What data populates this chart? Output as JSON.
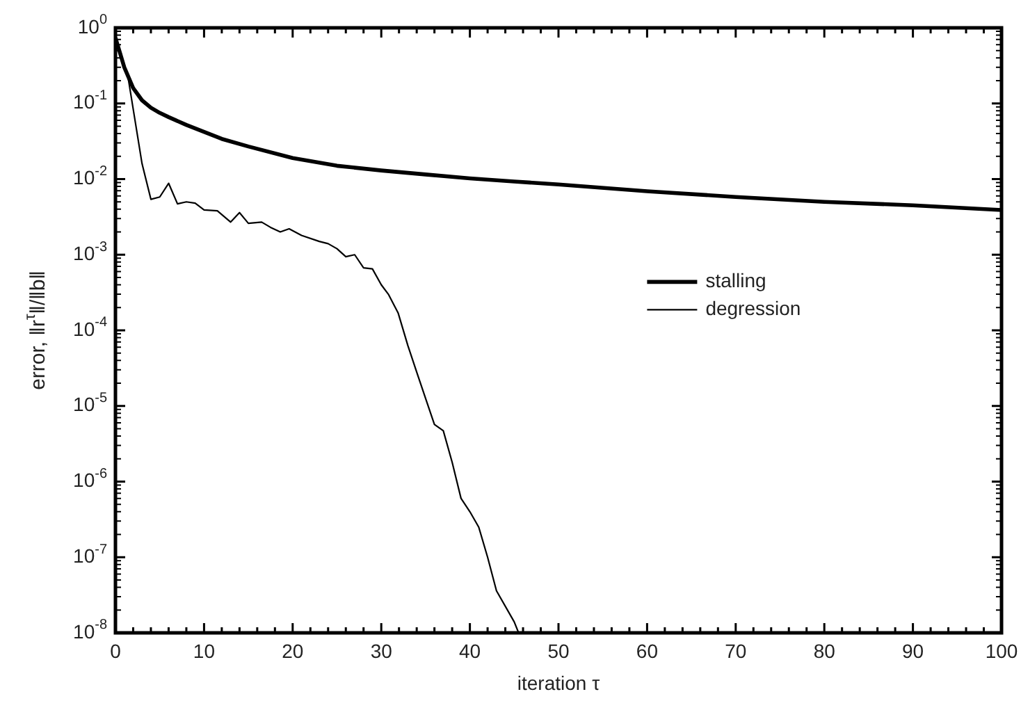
{
  "chart_data": {
    "type": "line",
    "xlabel": "iteration τ",
    "ylabel": "error, ‖r$^{τ}$‖/‖b‖",
    "log": "y",
    "legend": "right",
    "grid": false,
    "marker": "none",
    "line_style": "solid",
    "xlim": [
      0,
      100
    ],
    "xticks": [
      0,
      {
        "value": 2,
        "label": null
      },
      {
        "value": 4,
        "label": null
      },
      {
        "value": 6,
        "label": null
      },
      {
        "value": 8,
        "label": null
      },
      10,
      {
        "value": 12,
        "label": null
      },
      {
        "value": 14,
        "label": null
      },
      {
        "value": 16,
        "label": null
      },
      {
        "value": 18,
        "label": null
      },
      20,
      {
        "value": 22,
        "label": null
      },
      {
        "value": 24,
        "label": null
      },
      {
        "value": 26,
        "label": null
      },
      {
        "value": 28,
        "label": null
      },
      30,
      {
        "value": 32,
        "label": null
      },
      {
        "value": 34,
        "label": null
      },
      {
        "value": 36,
        "label": null
      },
      {
        "value": 38,
        "label": null
      },
      40,
      {
        "value": 42,
        "label": null
      },
      {
        "value": 44,
        "label": null
      },
      {
        "value": 46,
        "label": null
      },
      {
        "value": 48,
        "label": null
      },
      50,
      {
        "value": 52,
        "label": null
      },
      {
        "value": 54,
        "label": null
      },
      {
        "value": 56,
        "label": null
      },
      {
        "value": 58,
        "label": null
      },
      60,
      {
        "value": 62,
        "label": null
      },
      {
        "value": 64,
        "label": null
      },
      {
        "value": 66,
        "label": null
      },
      {
        "value": 68,
        "label": null
      },
      70,
      {
        "value": 72,
        "label": null
      },
      {
        "value": 74,
        "label": null
      },
      {
        "value": 76,
        "label": null
      },
      {
        "value": 78,
        "label": null
      },
      80,
      {
        "value": 82,
        "label": null
      },
      {
        "value": 84,
        "label": null
      },
      {
        "value": 86,
        "label": null
      },
      {
        "value": 88,
        "label": null
      },
      90,
      {
        "value": 92,
        "label": null
      },
      {
        "value": 94,
        "label": null
      },
      {
        "value": 96,
        "label": null
      },
      {
        "value": 98,
        "label": null
      },
      100
    ],
    "ylim": [
      1e-08,
      1
    ],
    "yticks": [
      {
        "value": 1e-08,
        "label": "10$^{-8}$"
      },
      {
        "value": 1e-07,
        "label": "10$^{-7}$"
      },
      {
        "value": 1e-06,
        "label": "10$^{-6}$"
      },
      {
        "value": 1e-05,
        "label": "10$^{-5}$"
      },
      {
        "value": 0.0001,
        "label": "10$^{-4}$"
      },
      {
        "value": 0.001,
        "label": "10$^{-3}$"
      },
      {
        "value": 0.01,
        "label": "10$^{-2}$"
      },
      {
        "value": 0.1,
        "label": "10$^{-1}$"
      },
      {
        "value": 1,
        "label": "10$^{0}$"
      }
    ],
    "series": [
      {
        "name": "stalling",
        "color": "#000000",
        "x": [
          0,
          1,
          2,
          3,
          4,
          5,
          6,
          8,
          10,
          12,
          15,
          20,
          25,
          30,
          35,
          40,
          45,
          50,
          60,
          70,
          80,
          90,
          100
        ],
        "values": [
          0.74,
          0.3,
          0.16,
          0.11,
          0.088,
          0.075,
          0.066,
          0.052,
          0.042,
          0.034,
          0.027,
          0.019,
          0.015,
          0.013,
          0.0115,
          0.0102,
          0.0093,
          0.0085,
          0.0069,
          0.0058,
          0.005,
          0.0045,
          0.0039
        ]
      },
      {
        "name": "degression",
        "color": "#000000",
        "x": [
          0,
          1.4,
          3,
          4,
          5,
          6,
          7,
          8,
          9,
          10,
          11.5,
          13,
          14,
          15,
          16.5,
          17.5,
          18.6,
          19.6,
          21,
          23,
          24,
          25,
          26,
          27,
          28,
          29,
          30,
          30.8,
          31.9,
          33,
          34,
          35,
          36,
          37,
          38,
          39,
          40,
          41,
          42,
          43,
          45,
          45.5
        ],
        "values": [
          0.74,
          0.23,
          0.016,
          0.0054,
          0.0058,
          0.0088,
          0.0047,
          0.005,
          0.0048,
          0.0039,
          0.0038,
          0.0027,
          0.0036,
          0.0026,
          0.0027,
          0.0023,
          0.002,
          0.0022,
          0.0018,
          0.0015,
          0.0014,
          0.0012,
          0.00094,
          0.001,
          0.00067,
          0.00065,
          0.0004,
          0.0003,
          0.00017,
          6.3e-05,
          2.8e-05,
          1.26e-05,
          5.7e-06,
          4.7e-06,
          1.8e-06,
          6e-07,
          4e-07,
          2.5e-07,
          1e-07,
          3.6e-08,
          1.4e-08,
          1e-08
        ]
      }
    ]
  }
}
